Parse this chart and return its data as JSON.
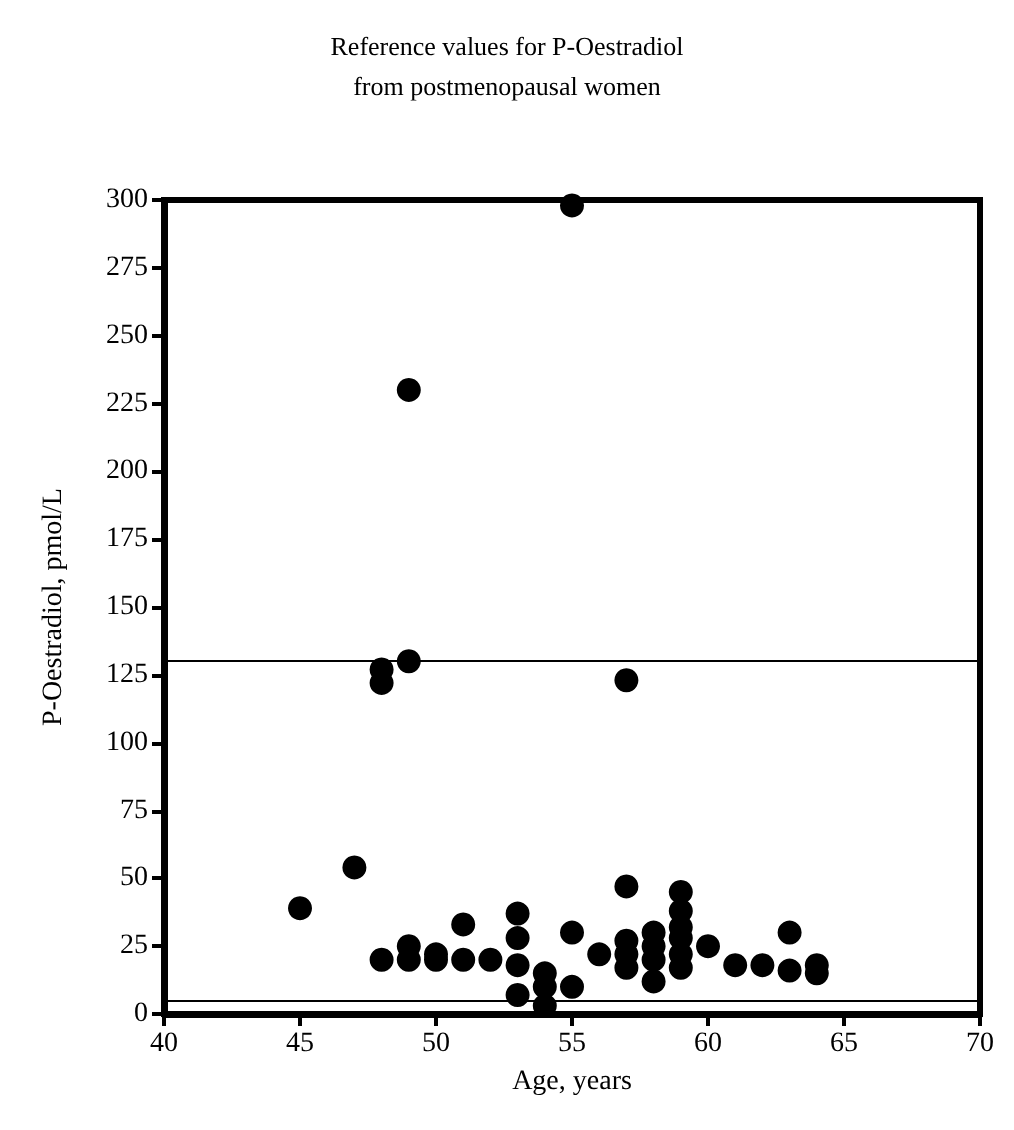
{
  "chart_data": {
    "type": "scatter",
    "title": "Reference values for P-Oestradiol\nfrom postmenopausal women",
    "xlabel": "Age, years",
    "ylabel": "P-Oestradiol, pmol/L",
    "x": [
      45,
      47,
      48,
      48,
      48,
      49,
      49,
      49,
      49,
      50,
      50,
      51,
      51,
      52,
      53,
      53,
      53,
      53,
      54,
      54,
      54,
      55,
      55,
      55,
      56,
      57,
      57,
      57,
      57,
      57,
      58,
      58,
      58,
      58,
      59,
      59,
      59,
      59,
      59,
      59,
      60,
      61,
      62,
      63,
      63,
      64,
      64
    ],
    "series": [
      {
        "color": "#000000",
        "values": [
          39,
          54,
          20,
          122,
          127,
          130,
          230,
          20,
          25,
          22,
          20,
          33,
          20,
          20,
          37,
          28,
          18,
          7,
          15,
          10,
          3,
          298,
          30,
          10,
          22,
          123,
          47,
          27,
          22,
          17,
          30,
          25,
          12,
          20,
          45,
          38,
          32,
          28,
          22,
          17,
          25,
          18,
          18,
          30,
          16,
          18,
          15
        ]
      }
    ],
    "xlim": [
      40,
      70
    ],
    "xticks": [
      40,
      45,
      50,
      55,
      60,
      65,
      70
    ],
    "ylim": [
      0,
      300
    ],
    "yticks": [
      0,
      25,
      50,
      75,
      100,
      125,
      150,
      175,
      200,
      225,
      250,
      275,
      300
    ],
    "ref_lines": [
      {
        "axis": "y",
        "value": 130,
        "color": "#000000"
      },
      {
        "axis": "y",
        "value": 5,
        "color": "#000000"
      }
    ],
    "grid": false,
    "marker": "circle"
  }
}
